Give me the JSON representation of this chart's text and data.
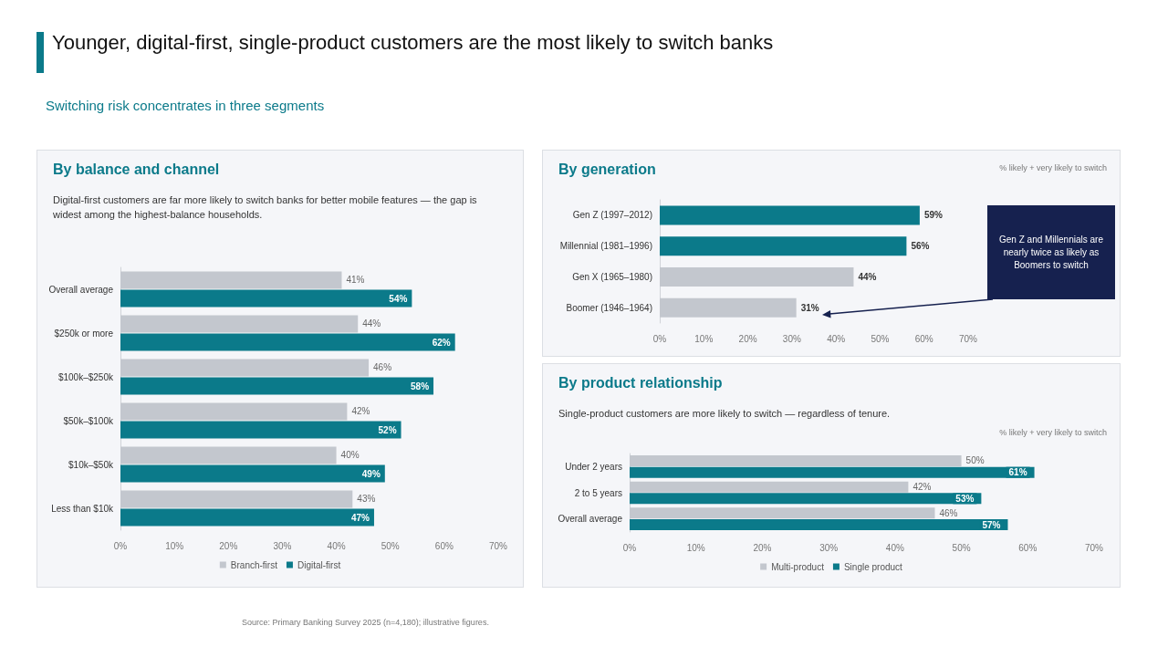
{
  "chart_data": [
    {
      "type": "other",
      "title": "Younger, digital-first, single-product customers are the most likely to switch banks",
      "subtitle": "Switching risk concentrates in three segments",
      "annotations": [
        "Source: Primary Banking Survey 2025 (n=4,180); illustrative figures."
      ]
    },
    {
      "type": "bar",
      "orientation": "horizontal",
      "title": "By balance and channel",
      "subtitle": "Digital-first customers are far more likely to switch banks for better mobile features — the gap is widest among the highest-balance households.",
      "categories": [
        "Overall average",
        "$250k or more",
        "$100k–$250k",
        "$50k–$100k",
        "$10k–$50k",
        "Less than $10k"
      ],
      "series": [
        {
          "name": "Branch-first",
          "color": "#c3c7ce",
          "values": [
            41,
            44,
            46,
            42,
            40,
            43
          ],
          "value_labels": [
            "41%",
            "44%",
            "46%",
            "42%",
            "40%",
            "43%"
          ]
        },
        {
          "name": "Digital-first",
          "color": "#0b7a8a",
          "values": [
            54,
            62,
            58,
            52,
            49,
            47
          ],
          "value_labels": [
            "54%",
            "62%",
            "58%",
            "52%",
            "49%",
            "47%"
          ]
        }
      ],
      "xlim": [
        0,
        70
      ],
      "xticks": [
        {
          "value": 0,
          "label": "0%"
        },
        {
          "value": 10,
          "label": "10%"
        },
        {
          "value": 20,
          "label": "20%"
        },
        {
          "value": 30,
          "label": "30%"
        },
        {
          "value": 40,
          "label": "40%"
        },
        {
          "value": 50,
          "label": "50%"
        },
        {
          "value": 60,
          "label": "60%"
        },
        {
          "value": 70,
          "label": "70%"
        }
      ],
      "grid": false,
      "legend": "bottom"
    },
    {
      "type": "bar",
      "orientation": "horizontal",
      "title": "By generation",
      "categories": [
        "Gen Z (1997–2012)",
        "Millennial (1981–1996)",
        "Gen X (1965–1980)",
        "Boomer (1946–1964)"
      ],
      "values": [
        59,
        56,
        44,
        31
      ],
      "colors": [
        "#0b7a8a",
        "#0b7a8a",
        "#c3c7ce",
        "#c3c7ce"
      ],
      "value_labels": [
        "59%",
        "56%",
        "44%",
        "31%"
      ],
      "xlim": [
        0,
        70
      ],
      "xticks": [
        {
          "value": 0,
          "label": "0%"
        },
        {
          "value": 10,
          "label": "10%"
        },
        {
          "value": 20,
          "label": "20%"
        },
        {
          "value": 30,
          "label": "30%"
        },
        {
          "value": 40,
          "label": "40%"
        },
        {
          "value": 50,
          "label": "50%"
        },
        {
          "value": 60,
          "label": "60%"
        },
        {
          "value": 70,
          "label": "70%"
        }
      ],
      "grid": false,
      "legend": false,
      "annotations": [
        "% likely + very likely to switch",
        "Gen Z and Millennials are nearly twice as likely as Boomers to switch"
      ]
    },
    {
      "type": "bar",
      "orientation": "horizontal",
      "title": "By product relationship",
      "subtitle": "Single-product customers are more likely to switch — regardless of tenure.",
      "categories": [
        "Under 2 years",
        "2 to 5 years",
        "Overall average"
      ],
      "series": [
        {
          "name": "Multi-product",
          "color": "#c3c7ce",
          "values": [
            50,
            42,
            46
          ],
          "value_labels": [
            "50%",
            "42%",
            "46%"
          ]
        },
        {
          "name": "Single product",
          "color": "#0b7a8a",
          "values": [
            61,
            53,
            57
          ],
          "value_labels": [
            "61%",
            "53%",
            "57%"
          ]
        }
      ],
      "xlim": [
        0,
        70
      ],
      "xticks": [
        {
          "value": 0,
          "label": "0%"
        },
        {
          "value": 10,
          "label": "10%"
        },
        {
          "value": 20,
          "label": "20%"
        },
        {
          "value": 30,
          "label": "30%"
        },
        {
          "value": 40,
          "label": "40%"
        },
        {
          "value": 50,
          "label": "50%"
        },
        {
          "value": 60,
          "label": "60%"
        },
        {
          "value": 70,
          "label": "70%"
        }
      ],
      "grid": false,
      "legend": "bottom",
      "annotations": [
        "% likely + very likely to switch"
      ]
    }
  ]
}
